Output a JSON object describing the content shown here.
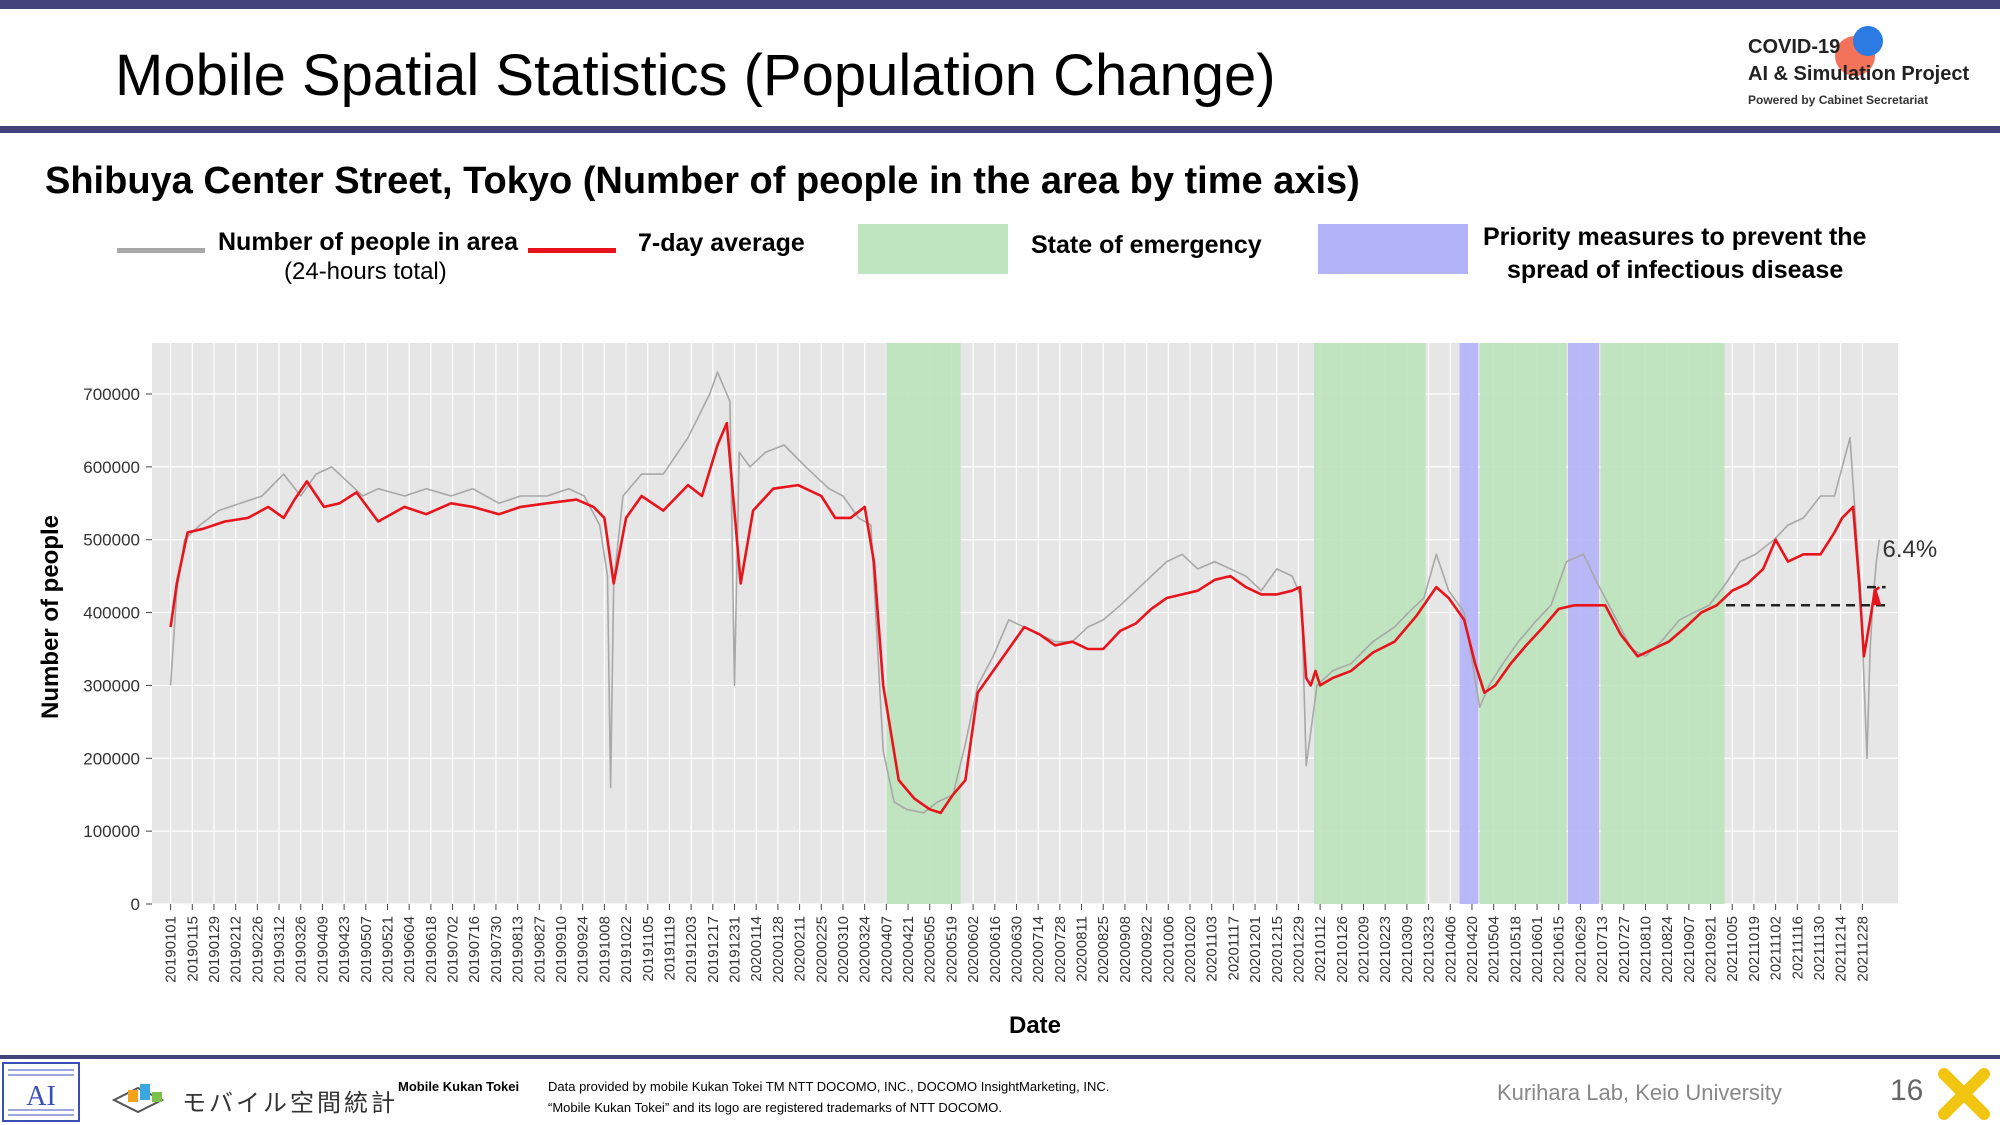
{
  "slide": {
    "title": "Mobile Spatial Statistics (Population Change)",
    "subtitle": "Shibuya Center Street, Tokyo (Number of people in the area by time axis)",
    "page_number": "16",
    "lab": "Kurihara Lab, Keio University"
  },
  "logo": {
    "line1": "COVID-19",
    "line2": "AI & Simulation Project",
    "line3": "Powered by Cabinet Secretariat"
  },
  "legend": {
    "daily_label": "Number of people in area",
    "daily_sub": "(24-hours total)",
    "avg_label": "7-day average",
    "emergency_label": "State of emergency",
    "priority_label_1": "Priority measures to prevent the",
    "priority_label_2": "spread of infectious disease"
  },
  "footer": {
    "mobile_kukan_jp": "モバイル空間統計",
    "brand": "Mobile Kukan Tokei",
    "credit1": "Data provided by mobile Kukan Tokei TM NTT DOCOMO, INC., DOCOMO InsightMarketing, INC.",
    "credit2": "“Mobile Kukan Tokei” and its logo are registered trademarks of NTT DOCOMO."
  },
  "colors": {
    "accent_bar": "#44427a",
    "daily_series": "#a8a8a8",
    "avg_series": "#e8141c",
    "emergency": "#b9e2b9",
    "priority": "#b3b3f7",
    "plot_bg": "#e6e6e6"
  },
  "chart_data": {
    "type": "line",
    "xlabel": "Date",
    "ylabel": "Number of people",
    "ylim": [
      0,
      770000
    ],
    "yticks": [
      0,
      100000,
      200000,
      300000,
      400000,
      500000,
      600000,
      700000
    ],
    "xlim": [
      "2018-12-20",
      "2022-01-20"
    ],
    "x_tick_start": "2019-01-01",
    "x_tick_interval_days": 14,
    "x_tick_labels": [
      "20190101",
      "20190115",
      "20190129",
      "20190212",
      "20190226",
      "20190312",
      "20190326",
      "20190409",
      "20190423",
      "20190507",
      "20190521",
      "20190604",
      "20190618",
      "20190702",
      "20190716",
      "20190730",
      "20190813",
      "20190827",
      "20190910",
      "20190924",
      "20191008",
      "20191022",
      "20191105",
      "20191119",
      "20191203",
      "20191217",
      "20191231",
      "20200114",
      "20200128",
      "20200211",
      "20200225",
      "20200310",
      "20200324",
      "20200407",
      "20200421",
      "20200505",
      "20200519",
      "20200602",
      "20200616",
      "20200630",
      "20200714",
      "20200728",
      "20200811",
      "20200825",
      "20200908",
      "20200922",
      "20201006",
      "20201020",
      "20201103",
      "20201117",
      "20201201",
      "20201215",
      "20201229",
      "20210112",
      "20210126",
      "20210209",
      "20210223",
      "20210309",
      "20210323",
      "20210406",
      "20210420",
      "20210504",
      "20210518",
      "20210601",
      "20210615",
      "20210629",
      "20210713",
      "20210727",
      "20210810",
      "20210824",
      "20210907",
      "20210921",
      "20211005",
      "20211019",
      "20211102",
      "20211116",
      "20211130",
      "20211214",
      "20211228"
    ],
    "grid": true,
    "shaded_periods": [
      {
        "type": "emergency",
        "start": "2020-04-07",
        "end": "2020-05-25"
      },
      {
        "type": "emergency",
        "start": "2021-01-08",
        "end": "2021-03-21"
      },
      {
        "type": "priority",
        "start": "2021-04-12",
        "end": "2021-04-24"
      },
      {
        "type": "emergency",
        "start": "2021-04-25",
        "end": "2021-06-20"
      },
      {
        "type": "priority",
        "start": "2021-06-21",
        "end": "2021-07-11"
      },
      {
        "type": "emergency",
        "start": "2021-07-12",
        "end": "2021-09-30"
      }
    ],
    "series": [
      {
        "name": "Number of people in area",
        "key": "daily",
        "x": [
          "2019-01-01",
          "2019-01-05",
          "2019-01-10",
          "2019-01-20",
          "2019-02-01",
          "2019-02-15",
          "2019-03-01",
          "2019-03-15",
          "2019-03-26",
          "2019-04-05",
          "2019-04-15",
          "2019-04-25",
          "2019-05-05",
          "2019-05-15",
          "2019-06-01",
          "2019-06-15",
          "2019-07-01",
          "2019-07-15",
          "2019-08-01",
          "2019-08-15",
          "2019-09-01",
          "2019-09-15",
          "2019-09-25",
          "2019-10-05",
          "2019-10-10",
          "2019-10-12",
          "2019-10-14",
          "2019-10-20",
          "2019-11-01",
          "2019-11-15",
          "2019-12-01",
          "2019-12-15",
          "2019-12-20",
          "2019-12-28",
          "2019-12-31",
          "2020-01-03",
          "2020-01-10",
          "2020-01-20",
          "2020-02-01",
          "2020-02-15",
          "2020-03-01",
          "2020-03-10",
          "2020-03-20",
          "2020-03-28",
          "2020-04-05",
          "2020-04-12",
          "2020-04-20",
          "2020-05-01",
          "2020-05-10",
          "2020-05-20",
          "2020-05-28",
          "2020-06-05",
          "2020-06-15",
          "2020-06-25",
          "2020-07-05",
          "2020-07-15",
          "2020-07-25",
          "2020-08-05",
          "2020-08-15",
          "2020-08-25",
          "2020-09-05",
          "2020-09-15",
          "2020-09-25",
          "2020-10-05",
          "2020-10-15",
          "2020-10-25",
          "2020-11-05",
          "2020-11-15",
          "2020-11-25",
          "2020-12-05",
          "2020-12-15",
          "2020-12-25",
          "2020-12-31",
          "2021-01-03",
          "2021-01-10",
          "2021-01-20",
          "2021-02-01",
          "2021-02-15",
          "2021-03-01",
          "2021-03-10",
          "2021-03-20",
          "2021-03-28",
          "2021-04-05",
          "2021-04-15",
          "2021-04-25",
          "2021-05-01",
          "2021-05-10",
          "2021-05-20",
          "2021-06-01",
          "2021-06-10",
          "2021-06-20",
          "2021-07-01",
          "2021-07-10",
          "2021-07-20",
          "2021-08-01",
          "2021-08-10",
          "2021-08-20",
          "2021-09-01",
          "2021-09-10",
          "2021-09-20",
          "2021-10-01",
          "2021-10-10",
          "2021-10-20",
          "2021-11-01",
          "2021-11-10",
          "2021-11-20",
          "2021-12-01",
          "2021-12-10",
          "2021-12-20",
          "2021-12-27",
          "2021-12-31",
          "2022-01-02",
          "2022-01-04",
          "2022-01-06",
          "2022-01-08"
        ],
        "values": [
          300000,
          430000,
          500000,
          520000,
          540000,
          550000,
          560000,
          590000,
          560000,
          590000,
          600000,
          580000,
          560000,
          570000,
          560000,
          570000,
          560000,
          570000,
          550000,
          560000,
          560000,
          570000,
          560000,
          520000,
          450000,
          160000,
          440000,
          560000,
          590000,
          590000,
          640000,
          700000,
          730000,
          690000,
          300000,
          620000,
          600000,
          620000,
          630000,
          600000,
          570000,
          560000,
          530000,
          520000,
          210000,
          140000,
          130000,
          125000,
          140000,
          150000,
          220000,
          300000,
          340000,
          390000,
          380000,
          370000,
          360000,
          360000,
          380000,
          390000,
          410000,
          430000,
          450000,
          470000,
          480000,
          460000,
          470000,
          460000,
          450000,
          430000,
          460000,
          450000,
          420000,
          190000,
          300000,
          320000,
          330000,
          360000,
          380000,
          400000,
          420000,
          480000,
          430000,
          400000,
          270000,
          300000,
          330000,
          360000,
          390000,
          410000,
          470000,
          480000,
          440000,
          400000,
          350000,
          340000,
          360000,
          390000,
          400000,
          410000,
          440000,
          470000,
          480000,
          500000,
          520000,
          530000,
          560000,
          560000,
          640000,
          420000,
          200000,
          350000,
          420000,
          470000,
          500000
        ]
      },
      {
        "name": "7-day average",
        "key": "avg",
        "x": [
          "2019-01-01",
          "2019-01-05",
          "2019-01-12",
          "2019-01-22",
          "2019-02-05",
          "2019-02-20",
          "2019-03-05",
          "2019-03-15",
          "2019-03-22",
          "2019-03-30",
          "2019-04-10",
          "2019-04-20",
          "2019-05-01",
          "2019-05-15",
          "2019-06-01",
          "2019-06-15",
          "2019-07-01",
          "2019-07-15",
          "2019-08-01",
          "2019-08-15",
          "2019-09-01",
          "2019-09-20",
          "2019-10-01",
          "2019-10-08",
          "2019-10-14",
          "2019-10-22",
          "2019-11-01",
          "2019-11-15",
          "2019-12-01",
          "2019-12-10",
          "2019-12-20",
          "2019-12-26",
          "2020-01-04",
          "2020-01-12",
          "2020-01-25",
          "2020-02-10",
          "2020-02-25",
          "2020-03-05",
          "2020-03-15",
          "2020-03-24",
          "2020-03-30",
          "2020-04-05",
          "2020-04-15",
          "2020-04-25",
          "2020-05-05",
          "2020-05-12",
          "2020-05-20",
          "2020-05-28",
          "2020-06-05",
          "2020-06-15",
          "2020-06-25",
          "2020-07-05",
          "2020-07-15",
          "2020-07-25",
          "2020-08-05",
          "2020-08-15",
          "2020-08-25",
          "2020-09-05",
          "2020-09-15",
          "2020-09-25",
          "2020-10-05",
          "2020-10-15",
          "2020-10-25",
          "2020-11-05",
          "2020-11-15",
          "2020-11-25",
          "2020-12-05",
          "2020-12-15",
          "2020-12-25",
          "2020-12-30",
          "2021-01-03",
          "2021-01-06",
          "2021-01-09",
          "2021-01-12",
          "2021-01-20",
          "2021-02-01",
          "2021-02-15",
          "2021-03-01",
          "2021-03-15",
          "2021-03-28",
          "2021-04-05",
          "2021-04-15",
          "2021-04-22",
          "2021-04-28",
          "2021-05-05",
          "2021-05-15",
          "2021-05-25",
          "2021-06-05",
          "2021-06-15",
          "2021-06-25",
          "2021-07-05",
          "2021-07-15",
          "2021-07-25",
          "2021-08-05",
          "2021-08-15",
          "2021-08-25",
          "2021-09-05",
          "2021-09-15",
          "2021-09-25",
          "2021-10-05",
          "2021-10-15",
          "2021-10-25",
          "2021-11-02",
          "2021-11-10",
          "2021-11-20",
          "2021-12-01",
          "2021-12-10",
          "2021-12-15",
          "2021-12-22",
          "2021-12-26",
          "2021-12-29",
          "2022-01-02",
          "2022-01-05",
          "2022-01-08"
        ],
        "values": [
          380000,
          440000,
          510000,
          515000,
          525000,
          530000,
          545000,
          530000,
          555000,
          580000,
          545000,
          550000,
          565000,
          525000,
          545000,
          535000,
          550000,
          545000,
          535000,
          545000,
          550000,
          555000,
          545000,
          530000,
          440000,
          530000,
          560000,
          540000,
          575000,
          560000,
          630000,
          660000,
          440000,
          540000,
          570000,
          575000,
          560000,
          530000,
          530000,
          545000,
          470000,
          300000,
          170000,
          145000,
          130000,
          125000,
          150000,
          170000,
          290000,
          320000,
          350000,
          380000,
          370000,
          355000,
          360000,
          350000,
          350000,
          375000,
          385000,
          405000,
          420000,
          425000,
          430000,
          445000,
          450000,
          435000,
          425000,
          425000,
          430000,
          435000,
          310000,
          300000,
          320000,
          300000,
          310000,
          320000,
          345000,
          360000,
          395000,
          435000,
          420000,
          390000,
          330000,
          290000,
          300000,
          330000,
          355000,
          380000,
          405000,
          410000,
          410000,
          410000,
          370000,
          340000,
          350000,
          360000,
          380000,
          400000,
          410000,
          430000,
          440000,
          460000,
          500000,
          470000,
          480000,
          480000,
          510000,
          530000,
          545000,
          440000,
          340000,
          390000,
          430000,
          435000
        ]
      }
    ],
    "annotation": {
      "label": "6.4%",
      "baseline": 410000,
      "level": 435000,
      "from": "2021-10-01",
      "to": "2022-01-12"
    }
  }
}
